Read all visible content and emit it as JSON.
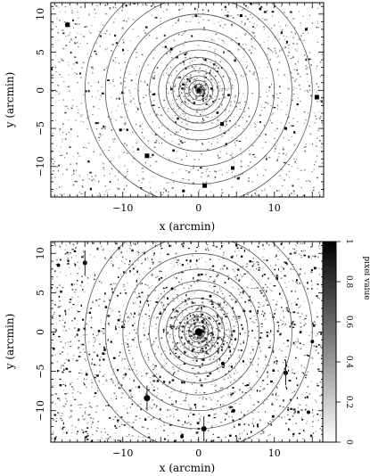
{
  "chart_data": [
    {
      "type": "heatmap",
      "panel": "top",
      "xlabel": "x (arcmin)",
      "ylabel": "y (arcmin)",
      "xlim": [
        -19.5,
        16.5
      ],
      "ylim": [
        -14,
        11.5
      ],
      "xticks": [
        -10,
        0,
        10
      ],
      "yticks": [
        -10,
        -5,
        0,
        5,
        10
      ],
      "contour_center": [
        0,
        0
      ],
      "contour_radii_arcmin": [
        0.4,
        0.8,
        1.3,
        1.9,
        2.6,
        3.4,
        4.3,
        5.3,
        6.5,
        8.0,
        10.0,
        12.3,
        15.0
      ],
      "source_density": "sparse",
      "bright_sources": [
        {
          "x": -6.8,
          "y": -8.6,
          "size": 5
        },
        {
          "x": -17.3,
          "y": 8.6,
          "size": 5
        },
        {
          "x": 0.8,
          "y": -12.5,
          "size": 5
        },
        {
          "x": 15.6,
          "y": -0.9,
          "size": 5
        },
        {
          "x": 4.5,
          "y": -10.2,
          "size": 4
        },
        {
          "x": -3.6,
          "y": 5.4,
          "size": 3
        },
        {
          "x": 14.2,
          "y": 8.0,
          "size": 3
        },
        {
          "x": 5.6,
          "y": 9.8,
          "size": 3
        },
        {
          "x": -10.3,
          "y": -5.2,
          "size": 3
        },
        {
          "x": 11.5,
          "y": -5.0,
          "size": 3
        },
        {
          "x": -2.0,
          "y": -13.2,
          "size": 3
        },
        {
          "x": 3.1,
          "y": -4.4,
          "size": 4
        }
      ]
    },
    {
      "type": "heatmap",
      "panel": "bottom",
      "xlabel": "x (arcmin)",
      "ylabel": "y (arcmin)",
      "xlim": [
        -19.5,
        16.5
      ],
      "ylim": [
        -14,
        11.5
      ],
      "xticks": [
        -10,
        0,
        10
      ],
      "yticks": [
        -10,
        -5,
        0,
        5,
        10
      ],
      "contour_center": [
        0,
        0
      ],
      "contour_radii_arcmin": [
        0.4,
        0.8,
        1.3,
        1.9,
        2.6,
        3.4,
        4.3,
        5.3,
        6.5,
        8.0,
        10.0,
        12.3,
        15.0
      ],
      "source_density": "dense",
      "bright_sources": [
        {
          "x": -6.8,
          "y": -8.4,
          "size": 7
        },
        {
          "x": 0.7,
          "y": -12.3,
          "size": 6
        },
        {
          "x": -15.0,
          "y": 8.8,
          "size": 5
        },
        {
          "x": -18.5,
          "y": 8.5,
          "size": 4
        },
        {
          "x": 11.5,
          "y": -5.2,
          "size": 5
        },
        {
          "x": 15.0,
          "y": -1.2,
          "size": 4
        },
        {
          "x": 4.6,
          "y": -10.0,
          "size": 4
        },
        {
          "x": -2.2,
          "y": -13.3,
          "size": 4
        },
        {
          "x": 14.5,
          "y": -10.2,
          "size": 4
        },
        {
          "x": -3.5,
          "y": 5.5,
          "size": 3
        },
        {
          "x": 3.2,
          "y": -4.0,
          "size": 4
        }
      ],
      "colorbar": {
        "label": "pixel value",
        "range": [
          0,
          1
        ],
        "ticks": [
          0,
          0.2,
          0.4,
          0.6,
          0.8,
          1
        ],
        "gradient": [
          "#ffffff",
          "#000000"
        ]
      }
    }
  ]
}
